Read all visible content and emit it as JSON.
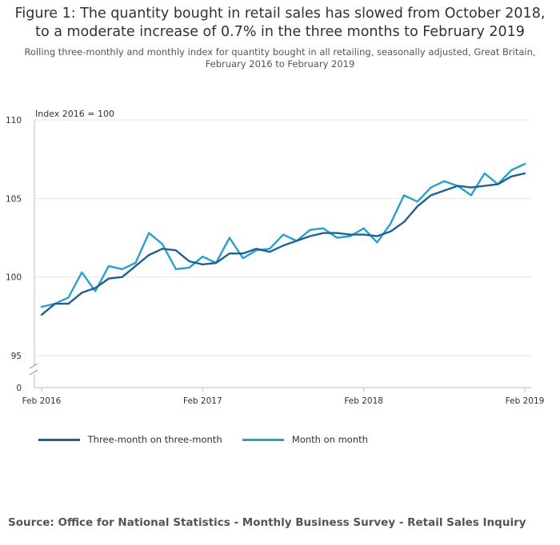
{
  "title_line1": "Figure 1: The quantity bought in retail sales has slowed from October 2018,",
  "title_line2": "to a moderate increase of 0.7% in the three months to February 2019",
  "subtitle_line1": "Rolling three-monthly and monthly index for quantity bought in all retailing, seasonally adjusted, Great Britain,",
  "subtitle_line2": "February 2016 to February 2019",
  "source": "Source: Office for National Statistics - Monthly Business Survey - Retail Sales Inquiry",
  "colors": {
    "three_month": "#206095",
    "month": "#27a0cc",
    "grid": "#e6e6e6",
    "axis": "#bebebe"
  },
  "chart_data": {
    "type": "line",
    "ylabel": "Index 2016 = 100",
    "ylim": [
      95,
      110
    ],
    "yticks": [
      95,
      100,
      105,
      110
    ],
    "ybreak_label": "0",
    "grid": true,
    "legend_position": "bottom",
    "xticks": [
      {
        "index": 0,
        "label": "Feb 2016"
      },
      {
        "index": 12,
        "label": "Feb 2017"
      },
      {
        "index": 24,
        "label": "Feb 2018"
      },
      {
        "index": 36,
        "label": "Feb 2019"
      }
    ],
    "x": [
      "Feb 2016",
      "Mar 2016",
      "Apr 2016",
      "May 2016",
      "Jun 2016",
      "Jul 2016",
      "Aug 2016",
      "Sep 2016",
      "Oct 2016",
      "Nov 2016",
      "Dec 2016",
      "Jan 2017",
      "Feb 2017",
      "Mar 2017",
      "Apr 2017",
      "May 2017",
      "Jun 2017",
      "Jul 2017",
      "Aug 2017",
      "Sep 2017",
      "Oct 2017",
      "Nov 2017",
      "Dec 2017",
      "Jan 2018",
      "Feb 2018",
      "Mar 2018",
      "Apr 2018",
      "May 2018",
      "Jun 2018",
      "Jul 2018",
      "Aug 2018",
      "Sep 2018",
      "Oct 2018",
      "Nov 2018",
      "Dec 2018",
      "Jan 2019",
      "Feb 2019"
    ],
    "series": [
      {
        "name": "Three-month on three-month",
        "key": "three_month",
        "values": [
          97.6,
          98.3,
          98.3,
          99.0,
          99.3,
          99.9,
          100.0,
          100.7,
          101.4,
          101.8,
          101.7,
          101.0,
          100.8,
          100.9,
          101.5,
          101.5,
          101.8,
          101.6,
          102.0,
          102.3,
          102.6,
          102.8,
          102.8,
          102.7,
          102.7,
          102.6,
          102.9,
          103.5,
          104.5,
          105.2,
          105.5,
          105.8,
          105.7,
          105.8,
          105.9,
          106.4,
          106.6
        ]
      },
      {
        "name": "Month on month",
        "key": "month",
        "values": [
          98.1,
          98.3,
          98.7,
          100.3,
          99.1,
          100.7,
          100.5,
          100.9,
          102.8,
          102.1,
          100.5,
          100.6,
          101.3,
          100.9,
          102.5,
          101.2,
          101.7,
          101.8,
          102.7,
          102.3,
          103.0,
          103.1,
          102.5,
          102.6,
          103.1,
          102.2,
          103.4,
          105.2,
          104.8,
          105.7,
          106.1,
          105.8,
          105.2,
          106.6,
          105.9,
          106.8,
          107.2
        ]
      }
    ]
  }
}
